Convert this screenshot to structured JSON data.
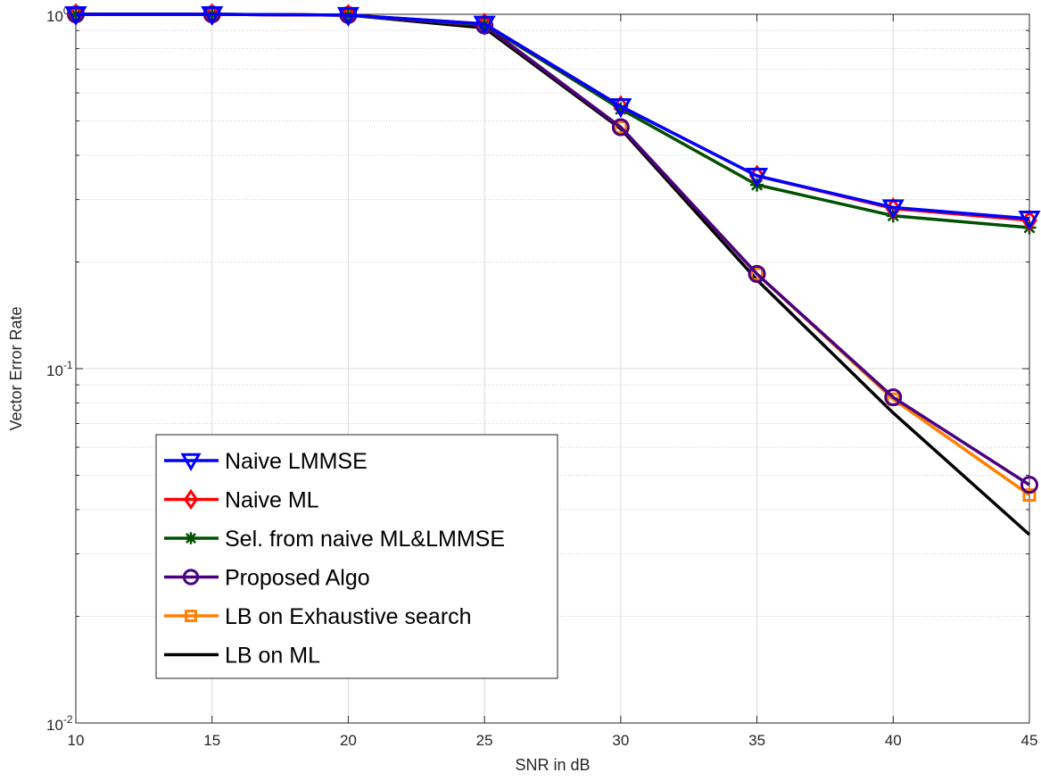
{
  "chart_data": {
    "type": "line",
    "title": "",
    "xlabel": "SNR in dB",
    "ylabel": "Vector Error Rate",
    "xlim": [
      10,
      45
    ],
    "ylim": [
      0.01,
      1
    ],
    "yscale": "log",
    "grid": true,
    "legend_position": "bottom-left",
    "x_ticks": [
      10,
      15,
      20,
      25,
      30,
      35,
      40,
      45
    ],
    "x_tick_labels": [
      "10",
      "15",
      "20",
      "25",
      "30",
      "35",
      "40",
      "45"
    ],
    "y_ticks": [
      {
        "base": "10",
        "exp": "0",
        "value": 1
      },
      {
        "base": "10",
        "exp": "-1",
        "value": 0.1
      },
      {
        "base": "10",
        "exp": "-2",
        "value": 0.01
      }
    ],
    "x": [
      10,
      15,
      20,
      25,
      30,
      35,
      40,
      45
    ],
    "series": [
      {
        "name": "Naive LMMSE",
        "color": "#0000ff",
        "marker": "triangle-down",
        "values": [
          1.0,
          1.0,
          0.995,
          0.94,
          0.55,
          0.35,
          0.285,
          0.265
        ]
      },
      {
        "name": "Naive ML",
        "color": "#ff0000",
        "marker": "diamond",
        "values": [
          1.0,
          1.0,
          0.995,
          0.94,
          0.55,
          0.35,
          0.283,
          0.262
        ]
      },
      {
        "name": "Sel. from naive ML&LMMSE",
        "color": "#005000",
        "marker": "star",
        "values": [
          1.0,
          1.0,
          0.995,
          0.935,
          0.54,
          0.33,
          0.27,
          0.25
        ]
      },
      {
        "name": "Proposed Algo",
        "color": "#4b0082",
        "marker": "circle",
        "values": [
          1.0,
          1.0,
          0.995,
          0.93,
          0.48,
          0.185,
          0.083,
          0.047
        ]
      },
      {
        "name": "LB on Exhaustive search",
        "color": "#ff7f00",
        "marker": "square",
        "values": [
          1.0,
          1.0,
          0.995,
          0.93,
          0.48,
          0.185,
          0.082,
          0.044
        ]
      },
      {
        "name": "LB on ML",
        "color": "#000000",
        "marker": "none",
        "values": [
          1.0,
          1.0,
          0.995,
          0.915,
          0.475,
          0.178,
          0.075,
          0.034
        ]
      }
    ]
  }
}
